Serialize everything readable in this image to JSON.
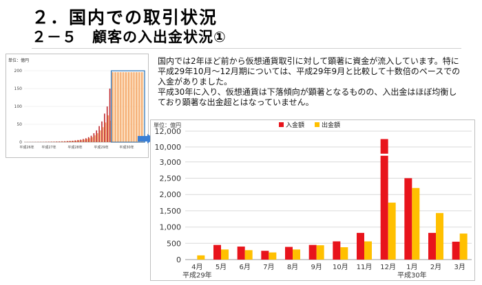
{
  "heading": {
    "title": "２．国内での取引状況",
    "subtitle": "２－５　顧客の入出金状況①"
  },
  "description": {
    "para1": "国内では2年ほど前から仮想通貨取引に対して顕著に資金が流入しています。特に平成29年10月～12月期については、平成29年9月と比較して十数倍のペースでの入金がありました。",
    "para2": "平成30年に入り、仮想通貨は下落傾向が顕著となるものの、入出金はほぼ均衡しており顕著な出金超とはなっていません。"
  },
  "colors": {
    "deposit": "#e8141c",
    "withdrawal": "#ffc000",
    "thumb_deposit": "#c0282e",
    "thumb_withdrawal": "#f4a261",
    "highlight": "#2e75b6",
    "grid": "#d9d9d9"
  },
  "thumbnail": {
    "unit": "単位：億円",
    "y_ticks": [
      "0",
      "50",
      "100",
      "150",
      "200"
    ],
    "x_labels": [
      "平成26年",
      "平成27年",
      "平成28年",
      "平成29年",
      "平成30年"
    ],
    "deposit_values": [
      0.5,
      0.5,
      0.6,
      0.7,
      0.8,
      0.9,
      1,
      1,
      1.2,
      1.3,
      1.5,
      1.6,
      1.8,
      2,
      2.3,
      2.5,
      3,
      3.5,
      4,
      5,
      6,
      7,
      9,
      11,
      14,
      18,
      25,
      33,
      45,
      58,
      80,
      100,
      150
    ],
    "withdrawal_values": [
      0.4,
      0.4,
      0.5,
      0.6,
      0.6,
      0.7,
      0.8,
      0.9,
      1,
      1.1,
      1.2,
      1.3,
      1.5,
      1.7,
      2,
      2.2,
      2.6,
      3,
      3.5,
      4,
      5,
      6,
      7,
      9,
      11,
      14,
      19,
      25,
      33,
      42,
      55,
      75,
      60
    ],
    "highlight_bars": 12,
    "highlight_value": 196
  },
  "chart_data": {
    "type": "bar",
    "title": "",
    "unit_label": "単位：億円",
    "categories": [
      "4月",
      "5月",
      "6月",
      "7月",
      "8月",
      "9月",
      "10月",
      "11月",
      "12月",
      "1月",
      "2月",
      "3月"
    ],
    "year_labels": [
      {
        "label": "平成29年",
        "category_index": 0
      },
      {
        "label": "平成30年",
        "category_index": 9
      }
    ],
    "y_ticks": [
      "0",
      "500",
      "1,000",
      "1,500",
      "2,000",
      "2,500",
      "3,000",
      "10,000",
      "12,000"
    ],
    "axis_break": {
      "lower_max": 3000,
      "upper_min": 10000
    },
    "series": [
      {
        "name": "入金額",
        "values": [
          0,
          450,
          400,
          270,
          390,
          450,
          560,
          820,
          11000,
          2500,
          820,
          550
        ]
      },
      {
        "name": "出金額",
        "values": [
          130,
          310,
          290,
          220,
          310,
          440,
          380,
          560,
          1750,
          2200,
          1430,
          800
        ]
      }
    ]
  }
}
